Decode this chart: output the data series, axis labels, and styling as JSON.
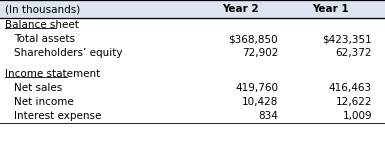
{
  "header_bg": "#dce4f0",
  "header_text_color": "#000000",
  "body_bg": "#ffffff",
  "border_color": "#000000",
  "header_label": "(In thousands)",
  "col1": "Year 2",
  "col2": "Year 1",
  "section1_title": "Balance sheet",
  "section2_title": "Income statement",
  "rows": [
    {
      "label": "Total assets",
      "v1": "$368,850",
      "v2": "$423,351"
    },
    {
      "label": "Shareholders’ equity",
      "v1": "72,902",
      "v2": "62,372"
    },
    {
      "label": "Net sales",
      "v1": "419,760",
      "v2": "416,463"
    },
    {
      "label": "Net income",
      "v1": "10,428",
      "v2": "12,622"
    },
    {
      "label": "Interest expense",
      "v1": "834",
      "v2": "1,009"
    }
  ],
  "font_size": 7.5,
  "header_font_size": 7.5,
  "fig_width": 3.85,
  "fig_height": 1.56,
  "dpi": 100
}
